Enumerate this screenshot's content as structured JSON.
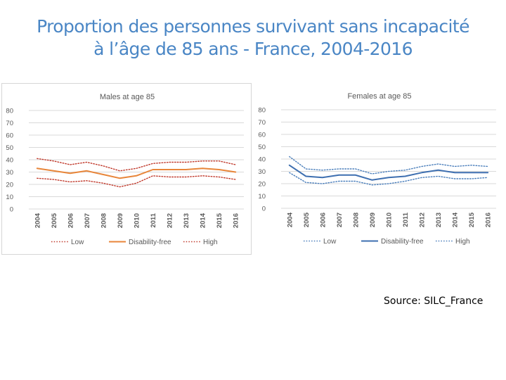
{
  "slide": {
    "title_line1": "Proportion des personnes survivant sans incapacité",
    "title_line2": "à l’âge de 85 ans - France, 2004-2016",
    "source": "Source: SILC_France"
  },
  "chart_data": [
    {
      "type": "line",
      "title": "Males at age 85",
      "x": [
        "2004",
        "2005",
        "2006",
        "2007",
        "2008",
        "2009",
        "2010",
        "2011",
        "2012",
        "2013",
        "2014",
        "2015",
        "2016"
      ],
      "ylim": [
        0,
        80
      ],
      "yticks": [
        "0",
        "10",
        "20",
        "30",
        "40",
        "50",
        "60",
        "70",
        "80"
      ],
      "grid": true,
      "legend_position": "bottom",
      "series": [
        {
          "name": "Low",
          "color": "#c0392b",
          "style": "dotted",
          "values": [
            25,
            24,
            22,
            23,
            21,
            18,
            21,
            27,
            26,
            26,
            27,
            26,
            24
          ]
        },
        {
          "name": "Disability-free",
          "color": "#e8863a",
          "style": "solid",
          "values": [
            33,
            31,
            29,
            31,
            28,
            25,
            27,
            32,
            32,
            32,
            33,
            32,
            30
          ]
        },
        {
          "name": "High",
          "color": "#c0392b",
          "style": "dotted",
          "values": [
            41,
            39,
            36,
            38,
            35,
            31,
            33,
            37,
            38,
            38,
            39,
            39,
            36
          ]
        }
      ]
    },
    {
      "type": "line",
      "title": "Females at age 85",
      "x": [
        "2004",
        "2005",
        "2006",
        "2007",
        "2008",
        "2009",
        "2010",
        "2011",
        "2012",
        "2013",
        "2014",
        "2015",
        "2016"
      ],
      "ylim": [
        0,
        80
      ],
      "yticks": [
        "0",
        "10",
        "20",
        "30",
        "40",
        "50",
        "60",
        "70",
        "80"
      ],
      "grid": true,
      "legend_position": "bottom",
      "series": [
        {
          "name": "Low",
          "color": "#4a7ebb",
          "style": "dotted",
          "values": [
            29,
            21,
            20,
            22,
            22,
            19,
            20,
            22,
            25,
            26,
            24,
            24,
            25
          ]
        },
        {
          "name": "Disability-free",
          "color": "#3e6fb0",
          "style": "solid",
          "values": [
            35,
            26,
            25,
            27,
            27,
            23,
            25,
            26,
            29,
            31,
            29,
            29,
            29
          ]
        },
        {
          "name": "High",
          "color": "#4a7ebb",
          "style": "dotted",
          "values": [
            42,
            32,
            31,
            32,
            32,
            28,
            30,
            31,
            34,
            36,
            34,
            35,
            34
          ]
        }
      ]
    }
  ]
}
